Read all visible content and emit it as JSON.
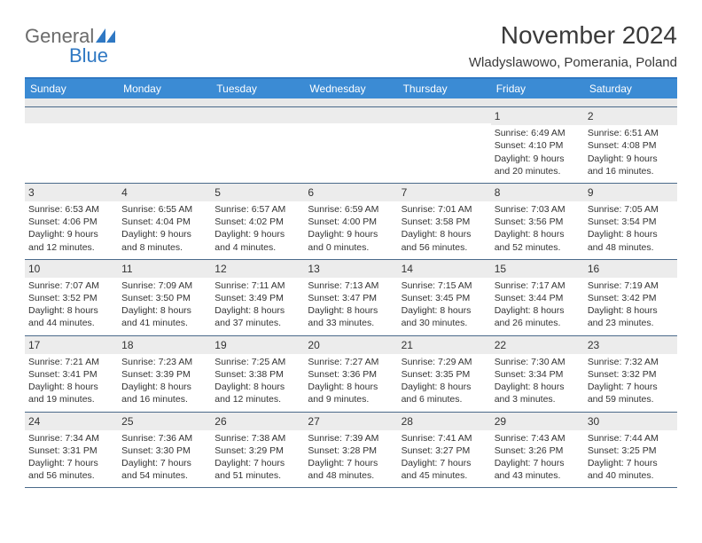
{
  "logo": {
    "general": "General",
    "blue": "Blue"
  },
  "title": "November 2024",
  "location": "Wladyslawowo, Pomerania, Poland",
  "colors": {
    "header_bar": "#3b8bd4",
    "accent_line": "#2f78c3",
    "shaded_bg": "#ececec",
    "text": "#333333"
  },
  "daysOfWeek": [
    "Sunday",
    "Monday",
    "Tuesday",
    "Wednesday",
    "Thursday",
    "Friday",
    "Saturday"
  ],
  "weeks": [
    [
      {
        "blank": true
      },
      {
        "blank": true
      },
      {
        "blank": true
      },
      {
        "blank": true
      },
      {
        "blank": true
      },
      {
        "day": "1",
        "sunrise": "Sunrise: 6:49 AM",
        "sunset": "Sunset: 4:10 PM",
        "day1": "Daylight: 9 hours",
        "day2": "and 20 minutes."
      },
      {
        "day": "2",
        "sunrise": "Sunrise: 6:51 AM",
        "sunset": "Sunset: 4:08 PM",
        "day1": "Daylight: 9 hours",
        "day2": "and 16 minutes."
      }
    ],
    [
      {
        "day": "3",
        "sunrise": "Sunrise: 6:53 AM",
        "sunset": "Sunset: 4:06 PM",
        "day1": "Daylight: 9 hours",
        "day2": "and 12 minutes."
      },
      {
        "day": "4",
        "sunrise": "Sunrise: 6:55 AM",
        "sunset": "Sunset: 4:04 PM",
        "day1": "Daylight: 9 hours",
        "day2": "and 8 minutes."
      },
      {
        "day": "5",
        "sunrise": "Sunrise: 6:57 AM",
        "sunset": "Sunset: 4:02 PM",
        "day1": "Daylight: 9 hours",
        "day2": "and 4 minutes."
      },
      {
        "day": "6",
        "sunrise": "Sunrise: 6:59 AM",
        "sunset": "Sunset: 4:00 PM",
        "day1": "Daylight: 9 hours",
        "day2": "and 0 minutes."
      },
      {
        "day": "7",
        "sunrise": "Sunrise: 7:01 AM",
        "sunset": "Sunset: 3:58 PM",
        "day1": "Daylight: 8 hours",
        "day2": "and 56 minutes."
      },
      {
        "day": "8",
        "sunrise": "Sunrise: 7:03 AM",
        "sunset": "Sunset: 3:56 PM",
        "day1": "Daylight: 8 hours",
        "day2": "and 52 minutes."
      },
      {
        "day": "9",
        "sunrise": "Sunrise: 7:05 AM",
        "sunset": "Sunset: 3:54 PM",
        "day1": "Daylight: 8 hours",
        "day2": "and 48 minutes."
      }
    ],
    [
      {
        "day": "10",
        "sunrise": "Sunrise: 7:07 AM",
        "sunset": "Sunset: 3:52 PM",
        "day1": "Daylight: 8 hours",
        "day2": "and 44 minutes."
      },
      {
        "day": "11",
        "sunrise": "Sunrise: 7:09 AM",
        "sunset": "Sunset: 3:50 PM",
        "day1": "Daylight: 8 hours",
        "day2": "and 41 minutes."
      },
      {
        "day": "12",
        "sunrise": "Sunrise: 7:11 AM",
        "sunset": "Sunset: 3:49 PM",
        "day1": "Daylight: 8 hours",
        "day2": "and 37 minutes."
      },
      {
        "day": "13",
        "sunrise": "Sunrise: 7:13 AM",
        "sunset": "Sunset: 3:47 PM",
        "day1": "Daylight: 8 hours",
        "day2": "and 33 minutes."
      },
      {
        "day": "14",
        "sunrise": "Sunrise: 7:15 AM",
        "sunset": "Sunset: 3:45 PM",
        "day1": "Daylight: 8 hours",
        "day2": "and 30 minutes."
      },
      {
        "day": "15",
        "sunrise": "Sunrise: 7:17 AM",
        "sunset": "Sunset: 3:44 PM",
        "day1": "Daylight: 8 hours",
        "day2": "and 26 minutes."
      },
      {
        "day": "16",
        "sunrise": "Sunrise: 7:19 AM",
        "sunset": "Sunset: 3:42 PM",
        "day1": "Daylight: 8 hours",
        "day2": "and 23 minutes."
      }
    ],
    [
      {
        "day": "17",
        "sunrise": "Sunrise: 7:21 AM",
        "sunset": "Sunset: 3:41 PM",
        "day1": "Daylight: 8 hours",
        "day2": "and 19 minutes."
      },
      {
        "day": "18",
        "sunrise": "Sunrise: 7:23 AM",
        "sunset": "Sunset: 3:39 PM",
        "day1": "Daylight: 8 hours",
        "day2": "and 16 minutes."
      },
      {
        "day": "19",
        "sunrise": "Sunrise: 7:25 AM",
        "sunset": "Sunset: 3:38 PM",
        "day1": "Daylight: 8 hours",
        "day2": "and 12 minutes."
      },
      {
        "day": "20",
        "sunrise": "Sunrise: 7:27 AM",
        "sunset": "Sunset: 3:36 PM",
        "day1": "Daylight: 8 hours",
        "day2": "and 9 minutes."
      },
      {
        "day": "21",
        "sunrise": "Sunrise: 7:29 AM",
        "sunset": "Sunset: 3:35 PM",
        "day1": "Daylight: 8 hours",
        "day2": "and 6 minutes."
      },
      {
        "day": "22",
        "sunrise": "Sunrise: 7:30 AM",
        "sunset": "Sunset: 3:34 PM",
        "day1": "Daylight: 8 hours",
        "day2": "and 3 minutes."
      },
      {
        "day": "23",
        "sunrise": "Sunrise: 7:32 AM",
        "sunset": "Sunset: 3:32 PM",
        "day1": "Daylight: 7 hours",
        "day2": "and 59 minutes."
      }
    ],
    [
      {
        "day": "24",
        "sunrise": "Sunrise: 7:34 AM",
        "sunset": "Sunset: 3:31 PM",
        "day1": "Daylight: 7 hours",
        "day2": "and 56 minutes."
      },
      {
        "day": "25",
        "sunrise": "Sunrise: 7:36 AM",
        "sunset": "Sunset: 3:30 PM",
        "day1": "Daylight: 7 hours",
        "day2": "and 54 minutes."
      },
      {
        "day": "26",
        "sunrise": "Sunrise: 7:38 AM",
        "sunset": "Sunset: 3:29 PM",
        "day1": "Daylight: 7 hours",
        "day2": "and 51 minutes."
      },
      {
        "day": "27",
        "sunrise": "Sunrise: 7:39 AM",
        "sunset": "Sunset: 3:28 PM",
        "day1": "Daylight: 7 hours",
        "day2": "and 48 minutes."
      },
      {
        "day": "28",
        "sunrise": "Sunrise: 7:41 AM",
        "sunset": "Sunset: 3:27 PM",
        "day1": "Daylight: 7 hours",
        "day2": "and 45 minutes."
      },
      {
        "day": "29",
        "sunrise": "Sunrise: 7:43 AM",
        "sunset": "Sunset: 3:26 PM",
        "day1": "Daylight: 7 hours",
        "day2": "and 43 minutes."
      },
      {
        "day": "30",
        "sunrise": "Sunrise: 7:44 AM",
        "sunset": "Sunset: 3:25 PM",
        "day1": "Daylight: 7 hours",
        "day2": "and 40 minutes."
      }
    ]
  ]
}
